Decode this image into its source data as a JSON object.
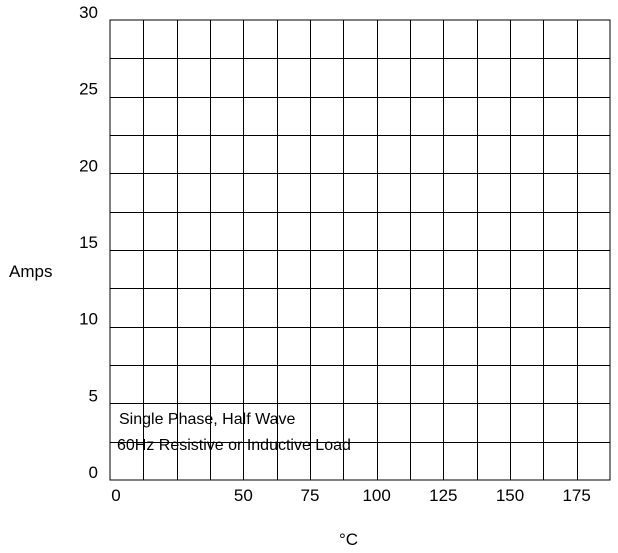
{
  "chart_data": {
    "type": "line",
    "title": "",
    "xlabel": "°C",
    "ylabel": "Amps",
    "xlim": [
      0,
      187.5
    ],
    "ylim": [
      0,
      30
    ],
    "x_ticks": [
      {
        "value": 0,
        "label": "0"
      },
      {
        "value": 50,
        "label": "50"
      },
      {
        "value": 75,
        "label": "75"
      },
      {
        "value": 100,
        "label": "100"
      },
      {
        "value": 125,
        "label": "125"
      },
      {
        "value": 150,
        "label": "150"
      },
      {
        "value": 175,
        "label": "175"
      }
    ],
    "y_ticks": [
      {
        "value": 0,
        "label": "0"
      },
      {
        "value": 5,
        "label": "5"
      },
      {
        "value": 10,
        "label": "10"
      },
      {
        "value": 15,
        "label": "15"
      },
      {
        "value": 20,
        "label": "20"
      },
      {
        "value": 25,
        "label": "25"
      },
      {
        "value": 30,
        "label": "30"
      }
    ],
    "x_grid_step": 12.5,
    "y_grid_step": 2.5,
    "grid": true,
    "series": [],
    "annotations": [
      "Single Phase, Half Wave",
      "60Hz Resistive or Inductive Load"
    ],
    "colors": {
      "grid": "#000000",
      "text": "#000000",
      "background": "#ffffff"
    }
  }
}
